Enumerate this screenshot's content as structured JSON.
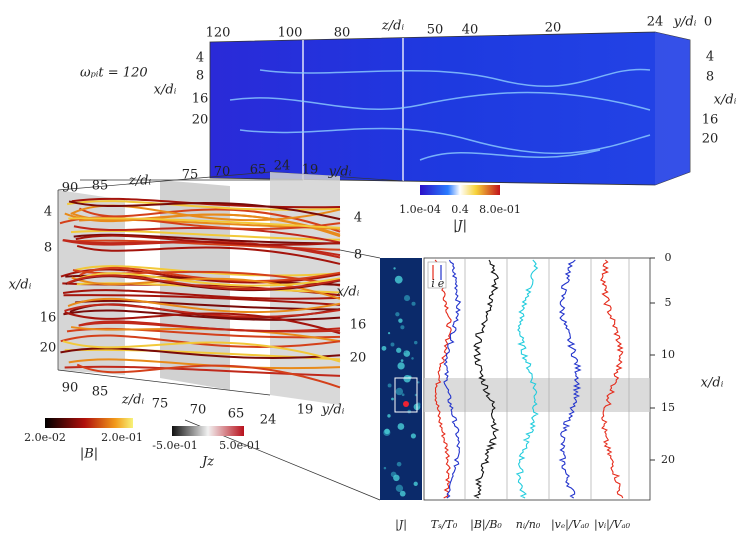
{
  "time_label": "ωₚᵢt = 120",
  "top_box": {
    "z_ticks": [
      "120",
      "100",
      "80",
      "50",
      "40",
      "20"
    ],
    "z_label": "z/dᵢ",
    "y_ticks": [
      "24",
      "0"
    ],
    "y_label": "y/dᵢ",
    "x_ticks_left": [
      "4",
      "8",
      "16",
      "20"
    ],
    "x_label_left": "x/dᵢ",
    "x_ticks_right": [
      "4",
      "8",
      "16",
      "20"
    ],
    "x_label_right": "x/dᵢ",
    "colorbar": {
      "min": "1.0e-04",
      "mid": "0.4",
      "max": "8.0e-01",
      "label": "|J|"
    }
  },
  "mid_box": {
    "z_ticks_top": [
      "90",
      "85",
      "75",
      "70",
      "65"
    ],
    "z_label_top": "z/dᵢ",
    "y_ticks_top": [
      "24",
      "19"
    ],
    "y_label_top": "y/dᵢ",
    "x_ticks_left": [
      "4",
      "8",
      "16",
      "20"
    ],
    "x_label_left": "x/dᵢ",
    "x_ticks_right": [
      "4",
      "8",
      "16",
      "20"
    ],
    "x_label_right": "x/dᵢ",
    "z_ticks_bottom": [
      "90",
      "85",
      "75",
      "70",
      "65"
    ],
    "z_label_bottom": "z/dᵢ",
    "y_ticks_bottom": [
      "24",
      "19"
    ],
    "y_label_bottom": "y/dᵢ",
    "colorbar_B": {
      "min": "2.0e-02",
      "max": "2.0e-01",
      "label": "|B|"
    },
    "colorbar_Jz": {
      "min": "-5.0e-01",
      "max": "5.0e-01",
      "label": "Jz"
    }
  },
  "profiles": {
    "legend": [
      "i",
      "e"
    ],
    "x_ticks": [
      "0",
      "5",
      "10",
      "15",
      "20"
    ],
    "x_label": "x/dᵢ",
    "panel_labels": [
      "|J|",
      "Tₛ/T₀",
      "|B|/B₀",
      "nᵢ/n₀",
      "|vₑ|/Vₐ₀",
      "|vᵢ|/Vₐ₀"
    ]
  }
}
